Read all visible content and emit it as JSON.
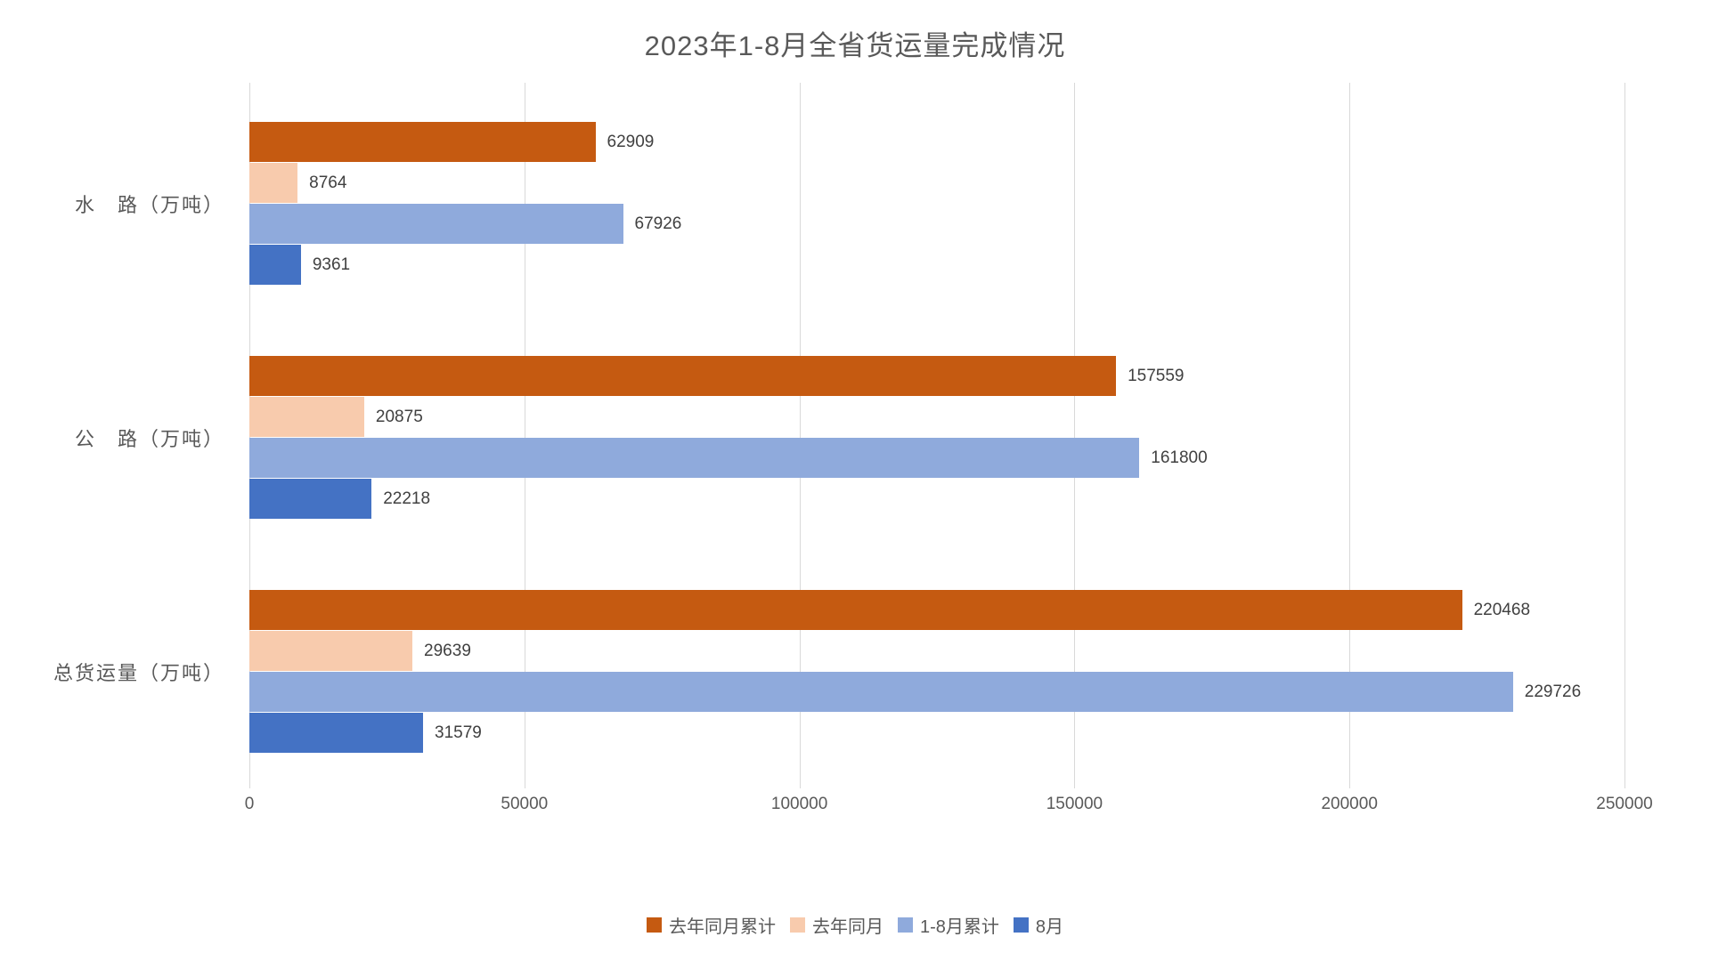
{
  "chart_data": {
    "type": "bar",
    "orientation": "horizontal",
    "title": "2023年1-8月全省货运量完成情况",
    "categories": [
      "水　路（万吨）",
      "公　路（万吨）",
      "总货运量（万吨）"
    ],
    "series": [
      {
        "name": "去年同月累计",
        "color": "#C55A11",
        "values": [
          62909,
          157559,
          220468
        ]
      },
      {
        "name": "去年同月",
        "color": "#F8CBAD",
        "values": [
          8764,
          20875,
          29639
        ]
      },
      {
        "name": "1-8月累计",
        "color": "#8FAADC",
        "values": [
          67926,
          161800,
          229726
        ]
      },
      {
        "name": "8月",
        "color": "#4472C4",
        "values": [
          9361,
          22218,
          31579
        ]
      }
    ],
    "xlim": [
      0,
      250000
    ],
    "x_ticks": [
      0,
      50000,
      100000,
      150000,
      200000,
      250000
    ],
    "x_tick_labels": [
      "0",
      "50000",
      "100000",
      "150000",
      "200000",
      "250000"
    ],
    "grid": true,
    "grid_color": "#d9d9d9",
    "value_labels": true,
    "value_label_color": "#404040",
    "axis_text_color": "#595959",
    "title_color": "#595959",
    "legend_position": "bottom",
    "background_color": "#ffffff"
  }
}
